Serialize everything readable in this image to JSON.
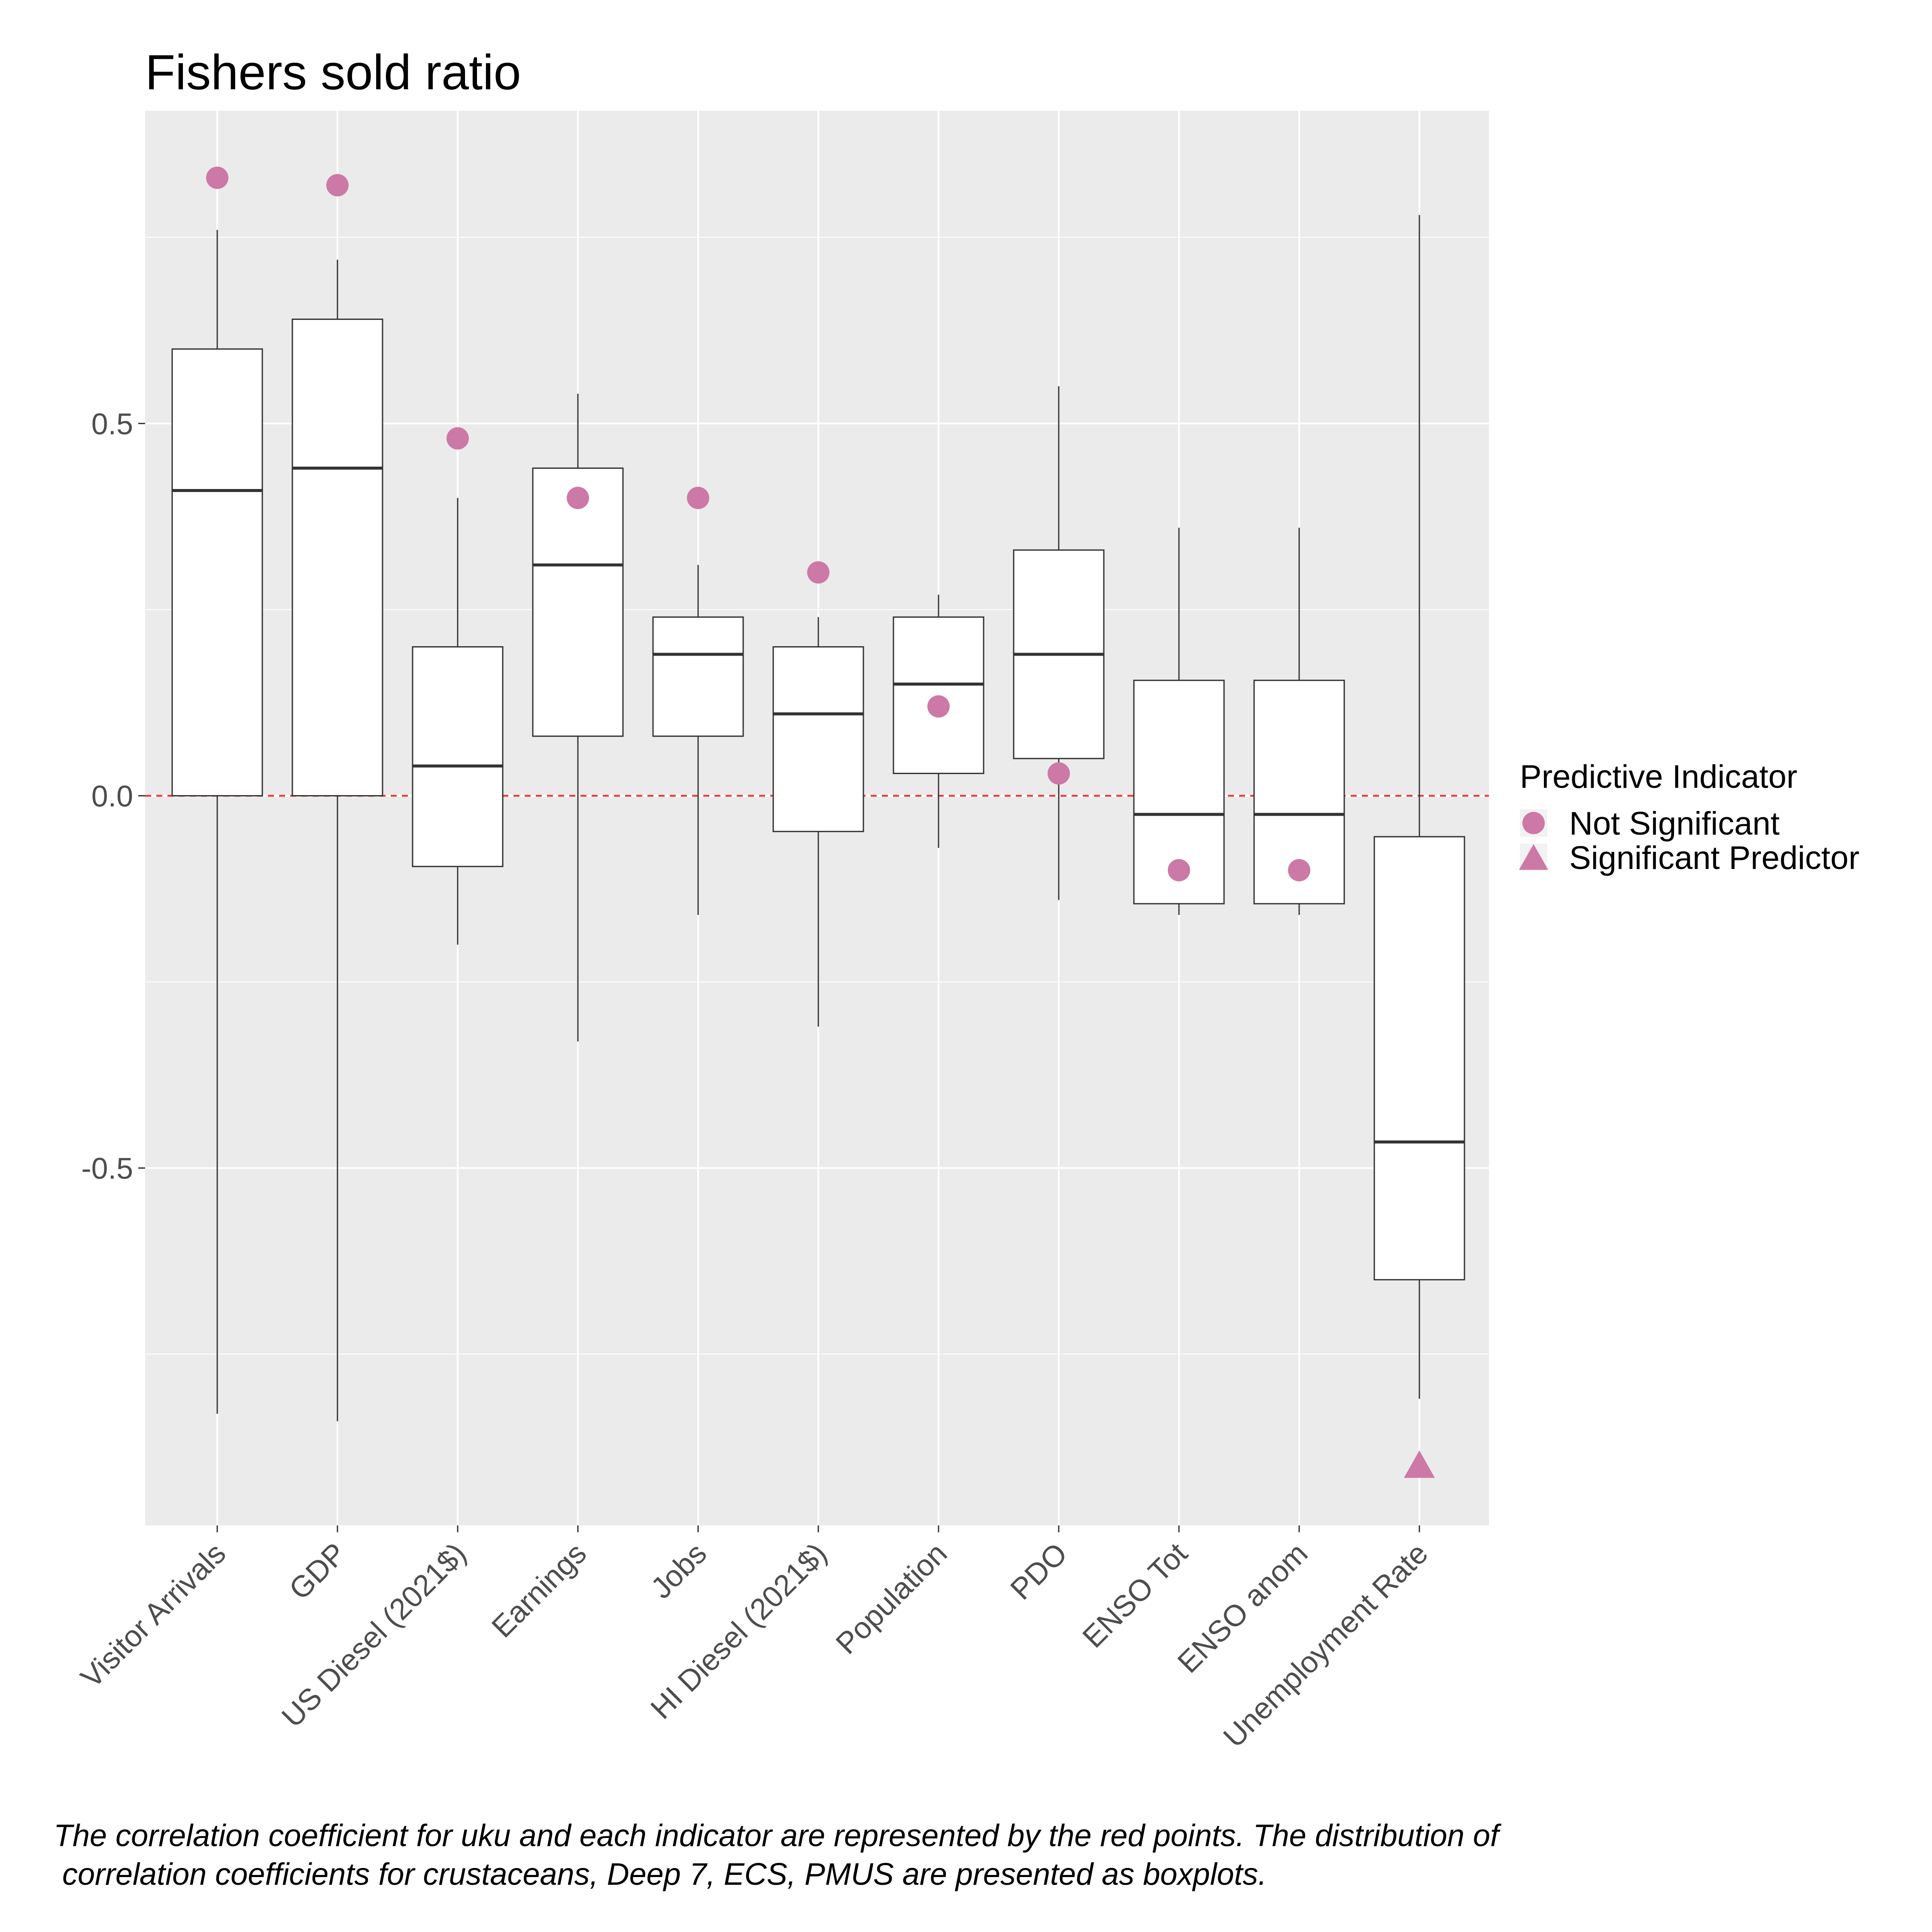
{
  "chart_data": {
    "type": "boxplot",
    "title": "Fishers sold ratio",
    "xlabel": "",
    "ylabel": "",
    "ylim": [
      -0.98,
      0.92
    ],
    "y_ticks": [
      -0.5,
      0.0,
      0.5
    ],
    "y_tick_labels": [
      "-0.5",
      "0.0",
      "0.5"
    ],
    "grid": true,
    "reference_line": {
      "y": 0,
      "color": "#e8332d",
      "style": "dashed"
    },
    "point_color": "#cc79a7",
    "legend": {
      "title": "Predictive Indicator",
      "position": "right",
      "entries": [
        {
          "label": "Not Significant",
          "shape": "circle"
        },
        {
          "label": "Significant Predictor",
          "shape": "triangle"
        }
      ]
    },
    "categories": [
      "Visitor Arrivals",
      "GDP",
      "US Diesel (2021$)",
      "Earnings",
      "Jobs",
      "HI Diesel (2021$)",
      "Population",
      "PDO",
      "ENSO Tot",
      "ENSO anom",
      "Unemployment Rate"
    ],
    "boxes": [
      {
        "category": "Visitor Arrivals",
        "whisker_low": -0.83,
        "q1": 0.0,
        "median": 0.41,
        "q3": 0.6,
        "whisker_high": 0.76
      },
      {
        "category": "GDP",
        "whisker_low": -0.84,
        "q1": 0.0,
        "median": 0.44,
        "q3": 0.64,
        "whisker_high": 0.72
      },
      {
        "category": "US Diesel (2021$)",
        "whisker_low": -0.2,
        "q1": -0.095,
        "median": 0.04,
        "q3": 0.2,
        "whisker_high": 0.4
      },
      {
        "category": "Earnings",
        "whisker_low": -0.33,
        "q1": 0.08,
        "median": 0.31,
        "q3": 0.44,
        "whisker_high": 0.54
      },
      {
        "category": "Jobs",
        "whisker_low": -0.16,
        "q1": 0.08,
        "median": 0.19,
        "q3": 0.24,
        "whisker_high": 0.31
      },
      {
        "category": "HI Diesel (2021$)",
        "whisker_low": -0.31,
        "q1": -0.048,
        "median": 0.11,
        "q3": 0.2,
        "whisker_high": 0.24
      },
      {
        "category": "Population",
        "whisker_low": -0.07,
        "q1": 0.03,
        "median": 0.15,
        "q3": 0.24,
        "whisker_high": 0.27
      },
      {
        "category": "PDO",
        "whisker_low": -0.14,
        "q1": 0.05,
        "median": 0.19,
        "q3": 0.33,
        "whisker_high": 0.55
      },
      {
        "category": "ENSO Tot",
        "whisker_low": -0.16,
        "q1": -0.145,
        "median": -0.025,
        "q3": 0.155,
        "whisker_high": 0.36
      },
      {
        "category": "ENSO anom",
        "whisker_low": -0.16,
        "q1": -0.145,
        "median": -0.025,
        "q3": 0.155,
        "whisker_high": 0.36
      },
      {
        "category": "Unemployment Rate",
        "whisker_low": -0.81,
        "q1": -0.65,
        "median": -0.465,
        "q3": -0.055,
        "whisker_high": 0.78
      }
    ],
    "points": [
      {
        "category": "Visitor Arrivals",
        "value": 0.83,
        "significance": "Not Significant"
      },
      {
        "category": "GDP",
        "value": 0.82,
        "significance": "Not Significant"
      },
      {
        "category": "US Diesel (2021$)",
        "value": 0.48,
        "significance": "Not Significant"
      },
      {
        "category": "Earnings",
        "value": 0.4,
        "significance": "Not Significant"
      },
      {
        "category": "Jobs",
        "value": 0.4,
        "significance": "Not Significant"
      },
      {
        "category": "HI Diesel (2021$)",
        "value": 0.3,
        "significance": "Not Significant"
      },
      {
        "category": "Population",
        "value": 0.12,
        "significance": "Not Significant"
      },
      {
        "category": "PDO",
        "value": 0.03,
        "significance": "Not Significant"
      },
      {
        "category": "ENSO Tot",
        "value": -0.1,
        "significance": "Not Significant"
      },
      {
        "category": "ENSO anom",
        "value": -0.1,
        "significance": "Not Significant"
      },
      {
        "category": "Unemployment Rate",
        "value": -0.9,
        "significance": "Significant Predictor"
      }
    ],
    "caption_lines": [
      "The correlation coefficient for uku and each indicator are represented by the red points. The distribution of",
      " correlation coefficients for crustaceans, Deep 7, ECS, PMUS are presented as boxplots."
    ]
  }
}
